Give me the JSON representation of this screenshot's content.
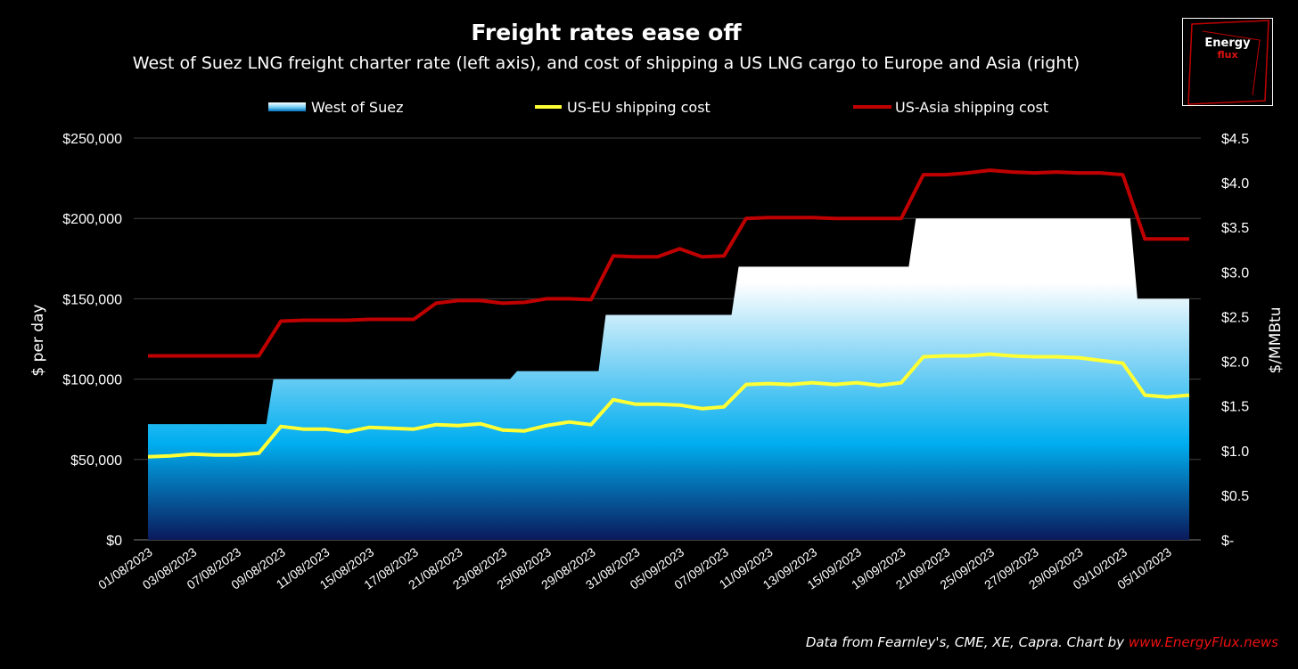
{
  "title": "Freight rates ease off",
  "subtitle": "West of Suez LNG freight charter rate (left axis), and cost of shipping a US LNG cargo to Europe and Asia (right)",
  "logo": {
    "line1": "Energy",
    "line2": "flux"
  },
  "source_prefix": "Data from Fearnley's, CME, XE, Capra. Chart by ",
  "source_link": "www.EnergyFlux.news",
  "colors": {
    "area_top": "#ffffff",
    "area_mid": "#00b0f0",
    "area_bottom": "#0a1a5c",
    "us_eu": "#ffff33",
    "us_asia": "#c00000",
    "grid": "#404040"
  },
  "chart_data": {
    "type": "line",
    "legend_position": "top",
    "grid": true,
    "y_left": {
      "label": "$ per day",
      "ticks": [
        "$0",
        "$50,000",
        "$100,000",
        "$150,000",
        "$200,000",
        "$250,000"
      ],
      "range": [
        0,
        250000
      ]
    },
    "y_right": {
      "label": "$/MMBtu",
      "ticks": [
        "$-",
        "$0.5",
        "$1.0",
        "$1.5",
        "$2.0",
        "$2.5",
        "$3.0",
        "$3.5",
        "$4.0",
        "$4.5"
      ],
      "range": [
        0,
        4.5
      ]
    },
    "x_tick_labels": [
      "01/08/2023",
      "03/08/2023",
      "07/08/2023",
      "09/08/2023",
      "11/08/2023",
      "15/08/2023",
      "17/08/2023",
      "21/08/2023",
      "23/08/2023",
      "25/08/2023",
      "29/08/2023",
      "31/08/2023",
      "05/09/2023",
      "07/09/2023",
      "11/09/2023",
      "13/09/2023",
      "15/09/2023",
      "19/09/2023",
      "21/09/2023",
      "25/09/2023",
      "27/09/2023",
      "29/09/2023",
      "03/10/2023",
      "05/10/2023"
    ],
    "series": [
      {
        "name": "West of Suez",
        "type": "area",
        "axis": "left",
        "values": [
          72000,
          72000,
          72000,
          72000,
          72000,
          72000,
          100000,
          100000,
          100000,
          100000,
          100000,
          100000,
          100000,
          100000,
          100000,
          100000,
          100000,
          105000,
          105000,
          105000,
          105000,
          140000,
          140000,
          140000,
          140000,
          140000,
          140000,
          170000,
          170000,
          170000,
          170000,
          170000,
          170000,
          170000,
          170000,
          200000,
          200000,
          200000,
          200000,
          200000,
          200000,
          200000,
          200000,
          200000,
          200000,
          150000,
          150000,
          150000
        ]
      },
      {
        "name": "US-EU shipping cost",
        "type": "line",
        "axis": "right",
        "values": [
          0.93,
          0.94,
          0.96,
          0.95,
          0.95,
          0.97,
          1.27,
          1.24,
          1.24,
          1.21,
          1.26,
          1.25,
          1.24,
          1.29,
          1.28,
          1.3,
          1.23,
          1.22,
          1.28,
          1.32,
          1.29,
          1.57,
          1.52,
          1.52,
          1.51,
          1.47,
          1.49,
          1.74,
          1.75,
          1.74,
          1.76,
          1.74,
          1.76,
          1.73,
          1.76,
          2.05,
          2.06,
          2.06,
          2.08,
          2.06,
          2.05,
          2.05,
          2.04,
          2.01,
          1.98,
          1.62,
          1.6,
          1.62
        ]
      },
      {
        "name": "US-Asia shipping cost",
        "type": "line",
        "axis": "right",
        "values": [
          2.06,
          2.06,
          2.06,
          2.06,
          2.06,
          2.06,
          2.45,
          2.46,
          2.46,
          2.46,
          2.47,
          2.47,
          2.47,
          2.65,
          2.68,
          2.68,
          2.65,
          2.66,
          2.7,
          2.7,
          2.69,
          3.18,
          3.17,
          3.17,
          3.26,
          3.17,
          3.18,
          3.6,
          3.61,
          3.61,
          3.61,
          3.6,
          3.6,
          3.6,
          3.6,
          4.09,
          4.09,
          4.11,
          4.14,
          4.12,
          4.11,
          4.12,
          4.11,
          4.11,
          4.09,
          3.37,
          3.37,
          3.37
        ]
      }
    ]
  }
}
